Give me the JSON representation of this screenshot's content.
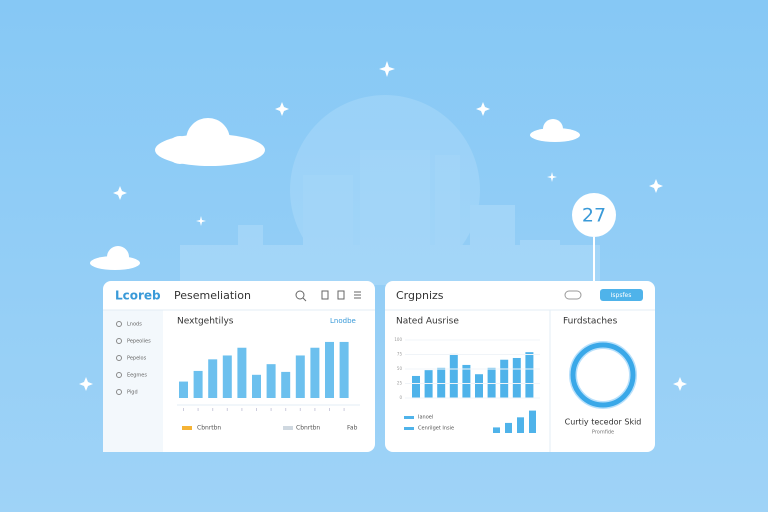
{
  "badge": "27",
  "left_panel": {
    "logo": "Lcoreb",
    "title": "Pesemeliation",
    "sidebar": [
      "Lnods",
      "Pepeolies",
      "Pepelos",
      "Eegmes",
      "Pigd"
    ],
    "section_title": "Nextgehtilys",
    "link": "Lnodbe",
    "chart": {
      "type": "bar",
      "color": "#6cc0ee",
      "ylim": [
        0,
        60
      ],
      "values": [
        17,
        28,
        40,
        44,
        52,
        24,
        35,
        27,
        44,
        52,
        58,
        58
      ]
    },
    "legend": [
      "Cbnrtbn",
      "Cbnrtbn",
      "Fab"
    ]
  },
  "right_panel": {
    "title": "Crgpnizs",
    "button": "Ispsfes",
    "section_title": "Nated Ausrise",
    "chart": {
      "type": "bar",
      "color": "#4fb3ea",
      "ylim": [
        0,
        100
      ],
      "yticks": [
        0,
        25,
        50,
        75,
        100
      ],
      "values": [
        38,
        48,
        52,
        76,
        57,
        41,
        52,
        66,
        69,
        79
      ]
    },
    "legend": [
      "Ianoel",
      "Cenrilget Insie"
    ],
    "mini_chart": {
      "type": "bar",
      "color": "#4fb3ea",
      "ylim": [
        0,
        25
      ],
      "values": [
        5,
        9,
        14,
        20
      ]
    },
    "donut_title": "Furdstaches",
    "donut_caption": "Curtiy tecedor Skid",
    "donut_subcaption": "Promfide"
  }
}
